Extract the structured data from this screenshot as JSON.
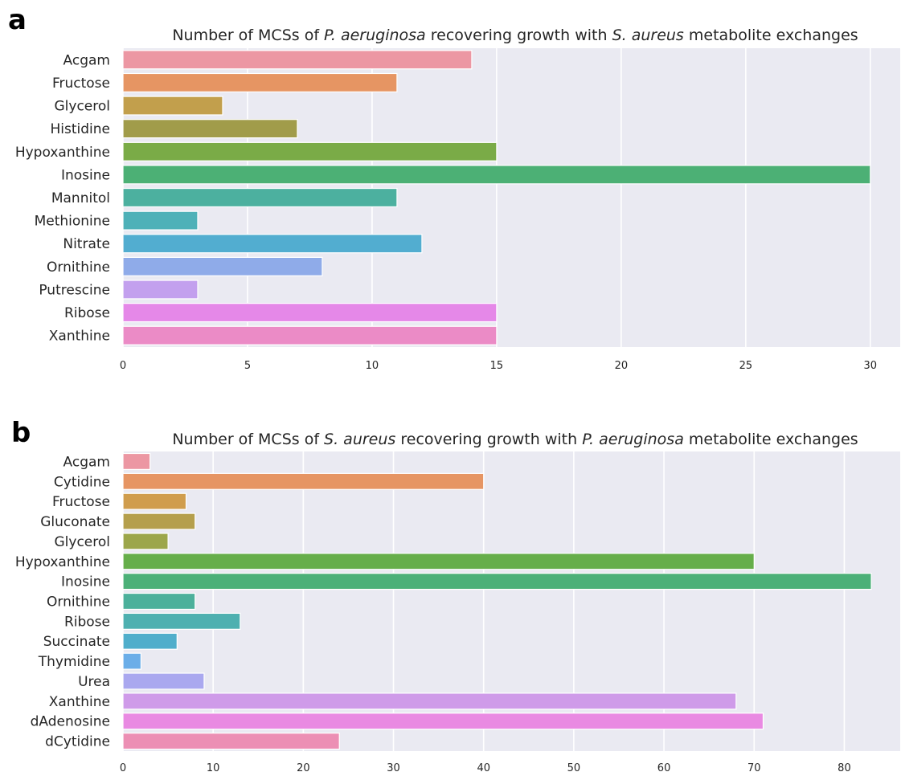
{
  "chart_data": [
    {
      "type": "bar",
      "orientation": "horizontal",
      "panel_label": "a",
      "title_parts": [
        {
          "text": "Number of MCSs of ",
          "italic": false
        },
        {
          "text": "P. aeruginosa",
          "italic": true
        },
        {
          "text": " recovering growth with ",
          "italic": false
        },
        {
          "text": "S. aureus",
          "italic": true
        },
        {
          "text": " metabolite exchanges",
          "italic": false
        }
      ],
      "categories": [
        "Acgam",
        "Fructose",
        "Glycerol",
        "Histidine",
        "Hypoxanthine",
        "Inosine",
        "Mannitol",
        "Methionine",
        "Nitrate",
        "Ornithine",
        "Putrescine",
        "Ribose",
        "Xanthine"
      ],
      "values": [
        14,
        11,
        4,
        7,
        15,
        30,
        11,
        3,
        12,
        8,
        3,
        15,
        15
      ],
      "colors": [
        "#ec97a3",
        "#e69563",
        "#c29f4c",
        "#a19c4a",
        "#7aab47",
        "#4cb075",
        "#4cb09f",
        "#4eb1b8",
        "#52add0",
        "#8fabe9",
        "#c3a0ee",
        "#e588e8",
        "#eb8bc6"
      ],
      "xlim": [
        0,
        31.2
      ],
      "xticks": [
        0,
        5,
        10,
        15,
        20,
        25,
        30
      ],
      "grid": true,
      "legend": "none",
      "xlabel": "",
      "ylabel": ""
    },
    {
      "type": "bar",
      "orientation": "horizontal",
      "panel_label": "b",
      "title_parts": [
        {
          "text": "Number of MCSs of ",
          "italic": false
        },
        {
          "text": "S. aureus",
          "italic": true
        },
        {
          "text": " recovering growth with ",
          "italic": false
        },
        {
          "text": "P. aeruginosa",
          "italic": true
        },
        {
          "text": " metabolite exchanges",
          "italic": false
        }
      ],
      "categories": [
        "Acgam",
        "Cytidine",
        "Fructose",
        "Gluconate",
        "Glycerol",
        "Hypoxanthine",
        "Inosine",
        "Ornithine",
        "Ribose",
        "Succinate",
        "Thymidine",
        "Urea",
        "Xanthine",
        "dAdenosine",
        "dCytidine"
      ],
      "values": [
        3,
        40,
        7,
        8,
        5,
        70,
        83,
        8,
        13,
        6,
        2,
        9,
        68,
        71,
        24
      ],
      "colors": [
        "#ec97a3",
        "#e69563",
        "#d09d4d",
        "#b59f4c",
        "#9ca64a",
        "#66ae4a",
        "#4cb078",
        "#4cb09b",
        "#4eb0b0",
        "#50aecb",
        "#6baee8",
        "#aaa8ef",
        "#cf9be9",
        "#e98ae2",
        "#ec8fb4"
      ],
      "xlim": [
        0,
        86.2
      ],
      "xticks": [
        0,
        10,
        20,
        30,
        40,
        50,
        60,
        70,
        80
      ],
      "grid": true,
      "legend": "none",
      "xlabel": "",
      "ylabel": ""
    }
  ]
}
